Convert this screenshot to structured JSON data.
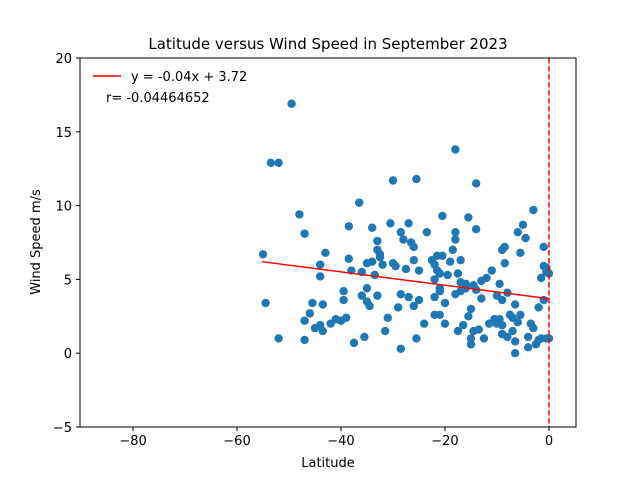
{
  "chart_data": {
    "type": "scatter",
    "title": "Latitude versus Wind Speed in September 2023",
    "xlabel": "Latitude",
    "ylabel": "Wind Speed m/s",
    "color": "#1f77b4",
    "x": [
      -55,
      -54.5,
      -53.5,
      -52,
      -52,
      -49.5,
      -48,
      -47,
      -47,
      -47,
      -46,
      -45.5,
      -45,
      -44,
      -44,
      -44,
      -43.5,
      -43.5,
      -43,
      -42,
      -41,
      -40,
      -39.5,
      -39.5,
      -39,
      -38.5,
      -38.5,
      -38,
      -37.5,
      -36.5,
      -36,
      -36,
      -35.5,
      -35,
      -35,
      -35,
      -34.5,
      -34,
      -34,
      -33.5,
      -33,
      -33,
      -33,
      -32.5,
      -32.5,
      -32,
      -31.5,
      -31,
      -30.5,
      -30,
      -30,
      -29.5,
      -29,
      -28.5,
      -28.5,
      -28.5,
      -28,
      -27.5,
      -27,
      -27,
      -26.5,
      -26,
      -26,
      -26,
      -25.5,
      -25.5,
      -25,
      -25,
      -24,
      -23.5,
      -22.5,
      -22,
      -22,
      -22,
      -22,
      -21.5,
      -21.5,
      -21,
      -21,
      -21,
      -21,
      -20.5,
      -20.5,
      -20,
      -20,
      -19.5,
      -19,
      -18.5,
      -18,
      -18,
      -18,
      -18,
      -17.5,
      -17.5,
      -17,
      -17,
      -17,
      -16.5,
      -16,
      -16,
      -15.5,
      -15.5,
      -15,
      -15,
      -15,
      -14.5,
      -14.5,
      -14,
      -14,
      -14,
      -13.5,
      -13,
      -13,
      -12.5,
      -12,
      -11.5,
      -11,
      -10.5,
      -10,
      -10,
      -9.5,
      -9.5,
      -9,
      -9,
      -9,
      -9,
      -8.5,
      -8.5,
      -8,
      -8,
      -7.5,
      -7,
      -7,
      -6.5,
      -6.5,
      -6.5,
      -6,
      -6,
      -5.5,
      -5.5,
      -5,
      -4.5,
      -4,
      -4,
      -3.5,
      -3,
      -3,
      -2.5,
      -2,
      -2,
      -1.5,
      -1.5,
      -1,
      -1,
      -1,
      -0.5,
      -0.5,
      -0.5,
      0,
      0
    ],
    "values": [
      6.7,
      3.4,
      12.9,
      12.9,
      1.0,
      16.9,
      9.4,
      8.1,
      2.2,
      0.9,
      2.7,
      3.4,
      1.7,
      5.2,
      6.0,
      1.9,
      3.3,
      1.5,
      6.8,
      2.0,
      2.3,
      2.2,
      4.2,
      3.6,
      2.4,
      6.4,
      8.6,
      5.6,
      0.7,
      10.2,
      3.9,
      5.5,
      1.1,
      3.5,
      4.4,
      6.1,
      3.2,
      8.5,
      6.2,
      5.3,
      7.0,
      3.9,
      7.6,
      6.5,
      6.7,
      6.0,
      1.5,
      2.4,
      8.8,
      6.1,
      11.7,
      5.9,
      3.1,
      4.0,
      0.3,
      8.2,
      7.7,
      5.7,
      3.8,
      8.8,
      7.5,
      6.3,
      7.2,
      3.2,
      1.0,
      11.8,
      3.6,
      5.6,
      2.0,
      8.2,
      6.3,
      6.0,
      5.0,
      3.8,
      2.6,
      5.6,
      6.6,
      4.4,
      4.2,
      2.6,
      5.4,
      9.3,
      6.6,
      3.4,
      2.0,
      5.3,
      6.2,
      7.0,
      13.8,
      7.7,
      8.2,
      4.0,
      1.5,
      5.4,
      4.2,
      6.3,
      4.8,
      1.9,
      4.4,
      4.7,
      9.2,
      2.5,
      3.0,
      1.0,
      0.6,
      4.6,
      1.5,
      8.4,
      11.5,
      4.3,
      1.6,
      4.9,
      3.7,
      1.0,
      5.1,
      2.0,
      5.6,
      2.3,
      2.0,
      3.9,
      4.7,
      2.3,
      1.3,
      3.6,
      1.9,
      7.0,
      7.2,
      6.1,
      1.1,
      4.1,
      2.6,
      1.5,
      2.4,
      3.3,
      0.8,
      0.0,
      2.1,
      8.2,
      2.6,
      6.8,
      8.7,
      7.8,
      1.1,
      0.4,
      2.0,
      9.7,
      1.7,
      0.6,
      0.9,
      3.1,
      5.1,
      1.0,
      7.2,
      5.9,
      3.6,
      5.5,
      5.8,
      1.0,
      5.4,
      1.0
    ],
    "fit_line": {
      "name": "y = -0.04x + 3.72",
      "color": "#ff0000",
      "x": [
        -55.2,
        -0.1
      ],
      "values": [
        6.2,
        3.7
      ]
    },
    "vline": {
      "value": 0,
      "color": "#ff0000"
    },
    "annotation": "r= -0.04464652",
    "xlim": [
      -90.2,
      5.2
    ],
    "ylim": [
      -5,
      20
    ],
    "xticks": [
      {
        "value": -80,
        "label": "−80"
      },
      {
        "value": -60,
        "label": "−60"
      },
      {
        "value": -40,
        "label": "−40"
      },
      {
        "value": -20,
        "label": "−20"
      },
      0
    ],
    "yticks": [
      {
        "value": -5,
        "label": "−5"
      },
      0,
      5,
      10,
      15,
      20
    ]
  }
}
